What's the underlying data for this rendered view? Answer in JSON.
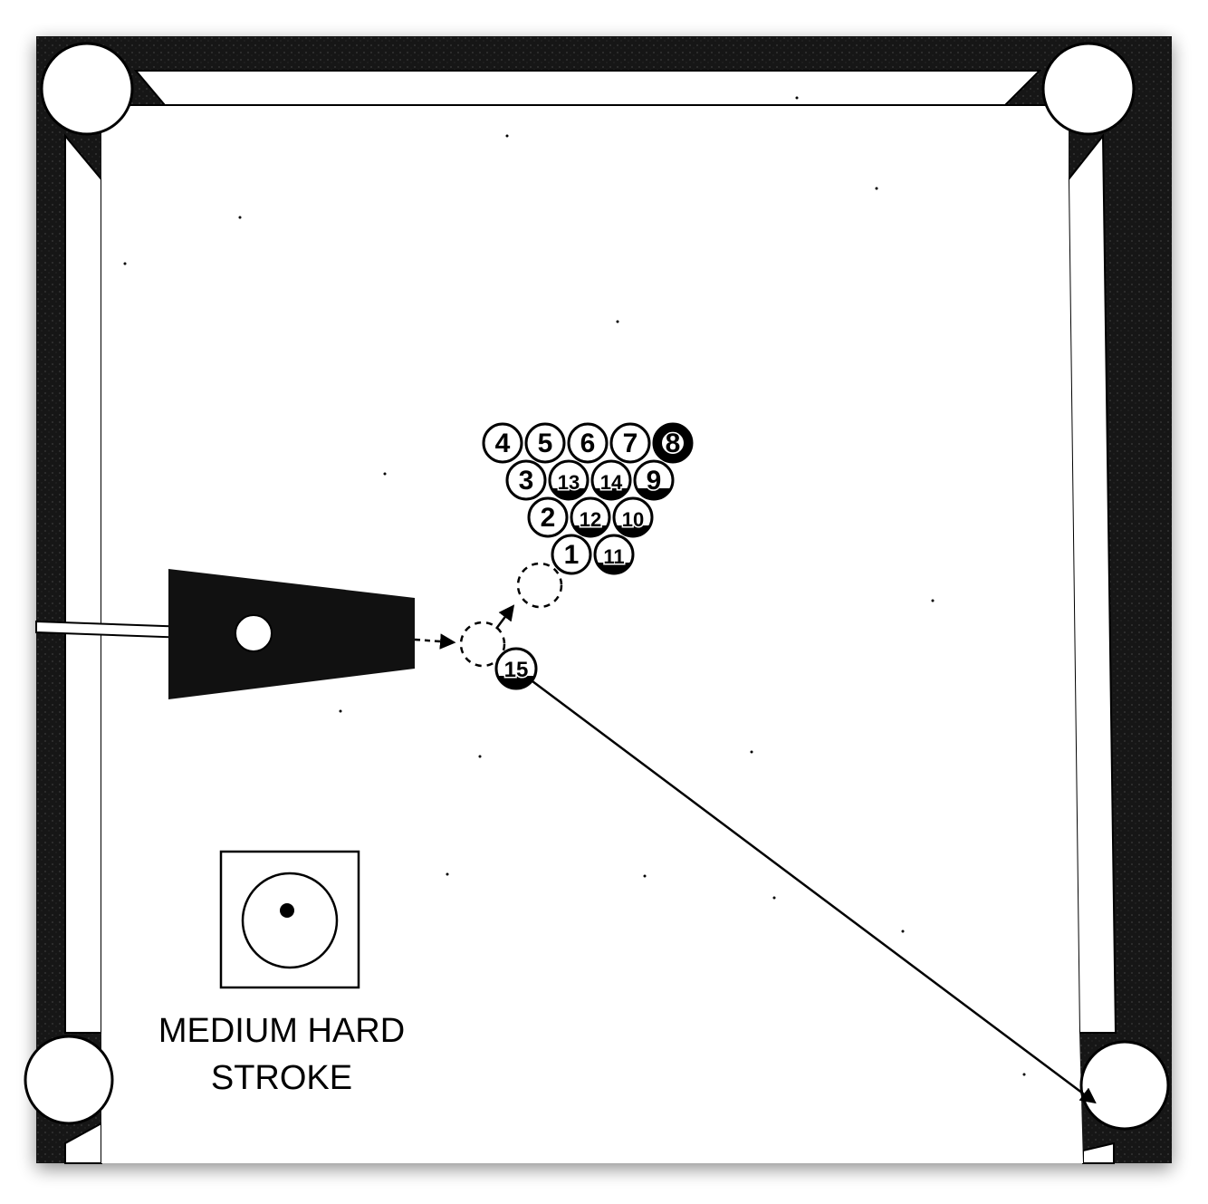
{
  "diagram": {
    "type": "pool-shot-diagram",
    "stroke_label_line1": "MEDIUM HARD",
    "stroke_label_line2": "STROKE",
    "colors": {
      "rail": "#111111",
      "cloth": "#ffffff",
      "ink": "#000000"
    },
    "rack": {
      "rows": [
        [
          "4",
          "5",
          "6",
          "7",
          "8"
        ],
        [
          "3",
          "13",
          "14",
          "9"
        ],
        [
          "2",
          "12",
          "10"
        ],
        [
          "1",
          "11"
        ]
      ]
    },
    "object_ball": "15"
  }
}
